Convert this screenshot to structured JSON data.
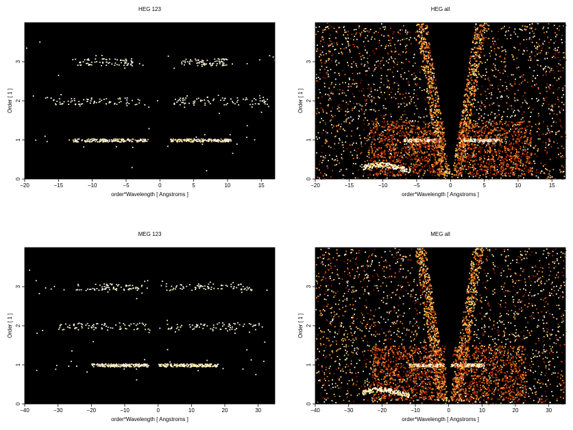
{
  "chart_data": [
    {
      "type": "heatmap",
      "title": "HEG 123",
      "xlabel": "order*Wavelength [ Angstroms ]",
      "ylabel": "Order [ 1 ]",
      "xlim": [
        -20,
        17
      ],
      "ylim": [
        0,
        4
      ],
      "xticks": [
        -20,
        -15,
        -10,
        -5,
        0,
        5,
        10,
        15
      ],
      "yticks": [
        0,
        1,
        2,
        3
      ],
      "background": "#000000",
      "colormap": "black-red-orange-yellow-white",
      "bands": [
        {
          "order": 1,
          "x_ranges": [
            [
              -13,
              -1.8
            ],
            [
              1.5,
              10.5
            ]
          ],
          "intensity": "bright"
        },
        {
          "order": 2,
          "x_ranges": [
            [
              -16,
              -3
            ],
            [
              2,
              16
            ]
          ],
          "intensity": "faint"
        },
        {
          "order": 3,
          "x_ranges": [
            [
              -13,
              -4
            ],
            [
              3,
              10
            ]
          ],
          "intensity": "faint"
        }
      ]
    },
    {
      "type": "heatmap",
      "title": "HEG all",
      "xlabel": "order*Wavelength [ Angstroms ]",
      "ylabel": "Order [ 1 ]",
      "xlim": [
        -20,
        17
      ],
      "ylim": [
        0,
        4
      ],
      "xticks": [
        -20,
        -15,
        -10,
        -5,
        0,
        5,
        10,
        15
      ],
      "yticks": [
        0,
        1,
        2,
        3
      ],
      "background": "#000000",
      "colormap": "black-red-orange-yellow-white",
      "bands": [
        {
          "order": 1,
          "x_ranges": [
            [
              -7,
              -1.5
            ],
            [
              1.5,
              7.5
            ]
          ],
          "intensity": "bright"
        }
      ]
    },
    {
      "type": "heatmap",
      "title": "MEG 123",
      "xlabel": "order*Wavelength [ Angstroms ]",
      "ylabel": "Order [ 1 ]",
      "xlim": [
        -40,
        35
      ],
      "ylim": [
        0,
        4
      ],
      "xticks": [
        -40,
        -30,
        -20,
        -10,
        0,
        10,
        20,
        30
      ],
      "yticks": [
        0,
        1,
        2,
        3
      ],
      "background": "#000000",
      "colormap": "black-red-orange-yellow-white",
      "bands": [
        {
          "order": 1,
          "x_ranges": [
            [
              -20,
              -3
            ],
            [
              0,
              18
            ]
          ],
          "intensity": "bright"
        },
        {
          "order": 2,
          "x_ranges": [
            [
              -30,
              -3
            ],
            [
              2,
              32
            ]
          ],
          "intensity": "faint"
        },
        {
          "order": 3,
          "x_ranges": [
            [
              -25,
              -6
            ],
            [
              2,
              28
            ]
          ],
          "intensity": "faint"
        }
      ]
    },
    {
      "type": "heatmap",
      "title": "MEG all",
      "xlabel": "order*Wavelength [ Angstroms ]",
      "ylabel": "Order [ 1 ]",
      "xlim": [
        -40,
        35
      ],
      "ylim": [
        0,
        4
      ],
      "xticks": [
        -40,
        -30,
        -20,
        -10,
        0,
        10,
        20,
        30
      ],
      "yticks": [
        0,
        1,
        2,
        3
      ],
      "background": "#000000",
      "colormap": "black-red-orange-yellow-white",
      "bands": [
        {
          "order": 1,
          "x_ranges": [
            [
              -12,
              -1.5
            ],
            [
              0.5,
              10.5
            ]
          ],
          "intensity": "bright"
        }
      ]
    }
  ]
}
